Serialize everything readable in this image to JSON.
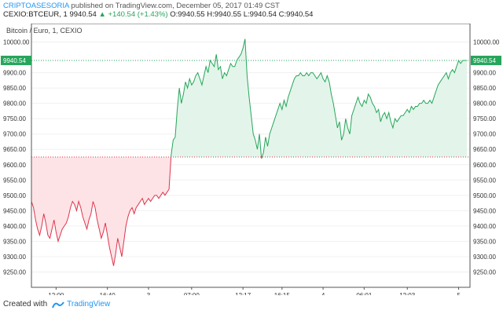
{
  "header": {
    "author": "CRIPTOASESORIA",
    "published_text": "published on TradingView.com, December 05, 2017 01:49 CST"
  },
  "symbol_bar": {
    "symbol": "CEXIO:BTCEUR, 1",
    "last": "9940.54",
    "change": "+140.54 (+1.43%)",
    "ohlc": "O:9940.55 H:9940.55 L:9940.54 C:9940.54"
  },
  "colors": {
    "up_line": "#26a65b",
    "up_fill": "#e3f5ea",
    "down_line": "#e0344c",
    "down_fill": "#fde3e6",
    "price_tag": "#26a65b",
    "baseline": "#e0344c"
  },
  "chart_data": {
    "type": "area",
    "title": "Bitcoin / Euro, 1, CEXIO",
    "baseline": 9625,
    "last_price_label": "9940.54",
    "ylim": [
      9200,
      10050
    ],
    "y_ticks": [
      "10000.00",
      "9900.00",
      "9850.00",
      "9800.00",
      "9750.00",
      "9700.00",
      "9650.00",
      "9600.00",
      "9550.00",
      "9500.00",
      "9450.00",
      "9400.00",
      "9350.00",
      "9300.00",
      "9250.00"
    ],
    "x_ticks": [
      {
        "i": 12,
        "label": "12:00"
      },
      {
        "i": 37,
        "label": "16:40"
      },
      {
        "i": 57,
        "label": "3"
      },
      {
        "i": 78,
        "label": "07:00"
      },
      {
        "i": 103,
        "label": "12:17"
      },
      {
        "i": 122,
        "label": "16:15"
      },
      {
        "i": 142,
        "label": "4"
      },
      {
        "i": 162,
        "label": "06:01"
      },
      {
        "i": 183,
        "label": "12:03"
      },
      {
        "i": 208,
        "label": "5"
      }
    ],
    "x_count": 213,
    "values": [
      9480,
      9460,
      9420,
      9390,
      9370,
      9400,
      9440,
      9410,
      9370,
      9360,
      9390,
      9420,
      9380,
      9350,
      9370,
      9390,
      9400,
      9410,
      9430,
      9460,
      9480,
      9470,
      9450,
      9480,
      9460,
      9430,
      9410,
      9390,
      9420,
      9440,
      9480,
      9460,
      9420,
      9390,
      9360,
      9380,
      9410,
      9370,
      9330,
      9300,
      9270,
      9310,
      9360,
      9330,
      9300,
      9350,
      9400,
      9430,
      9450,
      9460,
      9440,
      9460,
      9470,
      9480,
      9490,
      9470,
      9480,
      9490,
      9480,
      9490,
      9500,
      9500,
      9490,
      9500,
      9510,
      9500,
      9510,
      9520,
      9630,
      9680,
      9690,
      9780,
      9850,
      9800,
      9830,
      9870,
      9850,
      9880,
      9860,
      9870,
      9890,
      9900,
      9880,
      9860,
      9890,
      9920,
      9900,
      9940,
      9930,
      9920,
      9960,
      9910,
      9920,
      9880,
      9900,
      9890,
      9910,
      9930,
      9920,
      9920,
      9940,
      9950,
      9960,
      9980,
      10010,
      9890,
      9820,
      9760,
      9700,
      9680,
      9650,
      9700,
      9620,
      9640,
      9690,
      9660,
      9700,
      9720,
      9740,
      9760,
      9780,
      9800,
      9780,
      9810,
      9790,
      9820,
      9840,
      9860,
      9880,
      9890,
      9890,
      9900,
      9890,
      9890,
      9900,
      9890,
      9900,
      9900,
      9890,
      9880,
      9890,
      9900,
      9880,
      9870,
      9890,
      9870,
      9830,
      9800,
      9760,
      9720,
      9740,
      9680,
      9700,
      9750,
      9720,
      9700,
      9760,
      9780,
      9800,
      9820,
      9800,
      9790,
      9810,
      9800,
      9830,
      9820,
      9800,
      9790,
      9770,
      9780,
      9740,
      9760,
      9770,
      9750,
      9770,
      9740,
      9720,
      9750,
      9740,
      9750,
      9760,
      9760,
      9770,
      9780,
      9770,
      9790,
      9780,
      9790,
      9790,
      9800,
      9800,
      9810,
      9800,
      9800,
      9810,
      9800,
      9820,
      9840,
      9860,
      9870,
      9880,
      9890,
      9900,
      9880,
      9900,
      9910,
      9900,
      9920,
      9940,
      9930,
      9940,
      9940,
      9940
    ]
  },
  "footer": {
    "created_with": "Created with",
    "brand": "TradingView"
  }
}
